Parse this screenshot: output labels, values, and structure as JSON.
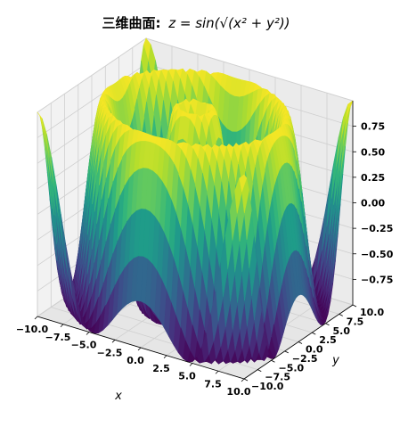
{
  "chart_data": {
    "type": "surface3d",
    "title_prefix": "三维曲面:",
    "title_formula": "z = sin(√(x² + y²))",
    "function": "z = sin(sqrt(x^2 + y^2))",
    "xlabel": "x",
    "ylabel": "y",
    "zlabel": "",
    "xlim": [
      -10,
      10
    ],
    "ylim": [
      -10,
      10
    ],
    "zlim": [
      -1,
      1
    ],
    "x_ticks": [
      "−10.0",
      "−7.5",
      "−5.0",
      "−2.5",
      "0.0",
      "2.5",
      "5.0",
      "7.5",
      "10.0"
    ],
    "y_ticks": [
      "−10.0",
      "−7.5",
      "−5.0",
      "−2.5",
      "0.0",
      "2.5",
      "5.0",
      "7.5",
      "10.0"
    ],
    "z_ticks": [
      "−0.75",
      "−0.50",
      "−0.25",
      "0.00",
      "0.25",
      "0.50",
      "0.75"
    ],
    "colormap": "viridis",
    "grid": true
  }
}
